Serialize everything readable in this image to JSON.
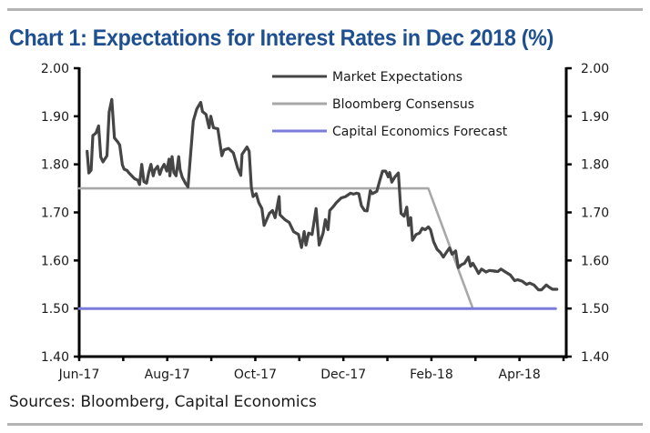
{
  "header": {
    "title": "Chart 1: Expectations for Interest Rates in Dec 2018 (%)"
  },
  "footer": {
    "source": "Sources: Bloomberg, Capital Economics"
  },
  "chart_data": {
    "type": "line",
    "title": "Chart 1: Expectations for Interest Rates in Dec 2018 (%)",
    "xlabel": "",
    "ylabel": "",
    "ylim": [
      1.4,
      2.0
    ],
    "yticks": [
      "2.00",
      "1.90",
      "1.80",
      "1.70",
      "1.60",
      "1.50",
      "1.40"
    ],
    "ytick_values": [
      2.0,
      1.9,
      1.8,
      1.7,
      1.6,
      1.5,
      1.4
    ],
    "secondary_y": true,
    "x_unit": "months since Jun-17",
    "xlim": [
      0,
      11
    ],
    "xticks_minor": [
      0,
      1,
      2,
      3,
      4,
      5,
      6,
      7,
      8,
      9,
      10,
      11
    ],
    "xtick_labels": [
      {
        "at": 0,
        "label": "Jun-17"
      },
      {
        "at": 2,
        "label": "Aug-17"
      },
      {
        "at": 4,
        "label": "Oct-17"
      },
      {
        "at": 6,
        "label": "Dec-17"
      },
      {
        "at": 8,
        "label": "Feb-18"
      },
      {
        "at": 10,
        "label": "Apr-18"
      }
    ],
    "grid": false,
    "legend_position": "top-center",
    "series": [
      {
        "name": "Market Expectations",
        "color": "#454545",
        "points": [
          [
            0.18,
            1.827
          ],
          [
            0.22,
            1.782
          ],
          [
            0.27,
            1.788
          ],
          [
            0.31,
            1.86
          ],
          [
            0.38,
            1.865
          ],
          [
            0.44,
            1.88
          ],
          [
            0.49,
            1.815
          ],
          [
            0.54,
            1.805
          ],
          [
            0.63,
            1.818
          ],
          [
            0.68,
            1.909
          ],
          [
            0.74,
            1.935
          ],
          [
            0.8,
            1.855
          ],
          [
            0.88,
            1.846
          ],
          [
            0.92,
            1.84
          ],
          [
            0.98,
            1.799
          ],
          [
            1.02,
            1.79
          ],
          [
            1.09,
            1.787
          ],
          [
            1.12,
            1.783
          ],
          [
            1.26,
            1.77
          ],
          [
            1.33,
            1.767
          ],
          [
            1.37,
            1.758
          ],
          [
            1.42,
            1.8
          ],
          [
            1.47,
            1.764
          ],
          [
            1.53,
            1.761
          ],
          [
            1.58,
            1.783
          ],
          [
            1.63,
            1.8
          ],
          [
            1.68,
            1.776
          ],
          [
            1.72,
            1.789
          ],
          [
            1.78,
            1.796
          ],
          [
            1.83,
            1.779
          ],
          [
            1.88,
            1.792
          ],
          [
            1.93,
            1.8
          ],
          [
            1.99,
            1.786
          ],
          [
            2.04,
            1.811
          ],
          [
            2.06,
            1.776
          ],
          [
            2.11,
            1.816
          ],
          [
            2.15,
            1.783
          ],
          [
            2.2,
            1.776
          ],
          [
            2.26,
            1.816
          ],
          [
            2.29,
            1.789
          ],
          [
            2.34,
            1.773
          ],
          [
            2.41,
            1.761
          ],
          [
            2.47,
            1.753
          ],
          [
            2.59,
            1.89
          ],
          [
            2.67,
            1.915
          ],
          [
            2.76,
            1.929
          ],
          [
            2.8,
            1.91
          ],
          [
            2.88,
            1.904
          ],
          [
            2.95,
            1.876
          ],
          [
            2.99,
            1.9
          ],
          [
            3.05,
            1.876
          ],
          [
            3.15,
            1.874
          ],
          [
            3.24,
            1.818
          ],
          [
            3.29,
            1.83
          ],
          [
            3.39,
            1.833
          ],
          [
            3.5,
            1.824
          ],
          [
            3.6,
            1.792
          ],
          [
            3.67,
            1.777
          ],
          [
            3.7,
            1.821
          ],
          [
            3.81,
            1.836
          ],
          [
            3.86,
            1.827
          ],
          [
            3.91,
            1.752
          ],
          [
            3.95,
            1.733
          ],
          [
            4.02,
            1.739
          ],
          [
            4.08,
            1.72
          ],
          [
            4.15,
            1.708
          ],
          [
            4.2,
            1.673
          ],
          [
            4.32,
            1.698
          ],
          [
            4.39,
            1.704
          ],
          [
            4.45,
            1.689
          ],
          [
            4.54,
            1.733
          ],
          [
            4.56,
            1.695
          ],
          [
            4.67,
            1.685
          ],
          [
            4.77,
            1.679
          ],
          [
            4.87,
            1.66
          ],
          [
            4.98,
            1.654
          ],
          [
            5.05,
            1.627
          ],
          [
            5.11,
            1.66
          ],
          [
            5.15,
            1.632
          ],
          [
            5.21,
            1.657
          ],
          [
            5.29,
            1.654
          ],
          [
            5.38,
            1.708
          ],
          [
            5.45,
            1.632
          ],
          [
            5.54,
            1.657
          ],
          [
            5.59,
            1.685
          ],
          [
            5.65,
            1.664
          ],
          [
            5.69,
            1.704
          ],
          [
            5.76,
            1.711
          ],
          [
            5.84,
            1.72
          ],
          [
            5.95,
            1.73
          ],
          [
            6.05,
            1.733
          ],
          [
            6.16,
            1.74
          ],
          [
            6.23,
            1.738
          ],
          [
            6.3,
            1.74
          ],
          [
            6.35,
            1.739
          ],
          [
            6.41,
            1.714
          ],
          [
            6.48,
            1.704
          ],
          [
            6.54,
            1.703
          ],
          [
            6.61,
            1.745
          ],
          [
            6.66,
            1.739
          ],
          [
            6.76,
            1.744
          ],
          [
            6.83,
            1.767
          ],
          [
            6.89,
            1.786
          ],
          [
            6.96,
            1.786
          ],
          [
            7.02,
            1.774
          ],
          [
            7.05,
            1.783
          ],
          [
            7.1,
            1.763
          ],
          [
            7.17,
            1.774
          ],
          [
            7.25,
            1.782
          ],
          [
            7.31,
            1.698
          ],
          [
            7.38,
            1.692
          ],
          [
            7.44,
            1.711
          ],
          [
            7.48,
            1.673
          ],
          [
            7.53,
            1.689
          ],
          [
            7.57,
            1.642
          ],
          [
            7.65,
            1.654
          ],
          [
            7.73,
            1.657
          ],
          [
            7.79,
            1.667
          ],
          [
            7.86,
            1.664
          ],
          [
            7.93,
            1.67
          ],
          [
            7.98,
            1.664
          ],
          [
            8.05,
            1.639
          ],
          [
            8.13,
            1.623
          ],
          [
            8.2,
            1.617
          ],
          [
            8.27,
            1.607
          ],
          [
            8.34,
            1.617
          ],
          [
            8.41,
            1.626
          ],
          [
            8.47,
            1.613
          ],
          [
            8.55,
            1.62
          ],
          [
            8.61,
            1.585
          ],
          [
            8.68,
            1.591
          ],
          [
            8.75,
            1.594
          ],
          [
            8.84,
            1.607
          ],
          [
            8.89,
            1.588
          ],
          [
            8.94,
            1.594
          ],
          [
            9.0,
            1.585
          ],
          [
            9.07,
            1.573
          ],
          [
            9.14,
            1.582
          ],
          [
            9.24,
            1.576
          ],
          [
            9.31,
            1.579
          ],
          [
            9.45,
            1.578
          ],
          [
            9.41,
            1.578
          ],
          [
            9.51,
            1.577
          ],
          [
            9.58,
            1.582
          ],
          [
            9.68,
            1.576
          ],
          [
            9.79,
            1.57
          ],
          [
            9.79,
            1.57
          ],
          [
            9.89,
            1.558
          ],
          [
            9.96,
            1.56
          ],
          [
            10.06,
            1.557
          ],
          [
            10.16,
            1.55
          ],
          [
            10.23,
            1.553
          ],
          [
            10.33,
            1.549
          ],
          [
            10.43,
            1.539
          ],
          [
            10.5,
            1.539
          ],
          [
            10.61,
            1.549
          ],
          [
            10.68,
            1.544
          ],
          [
            10.75,
            1.54
          ],
          [
            10.85,
            1.54
          ]
        ]
      },
      {
        "name": "Bloomberg Consensus",
        "color": "#a8a8a8",
        "points": [
          [
            0,
            1.75
          ],
          [
            7.93,
            1.75
          ],
          [
            8.94,
            1.5
          ]
        ]
      },
      {
        "name": "Capital Economics Forecast",
        "color": "#7b7bdc",
        "points": [
          [
            0,
            1.5
          ],
          [
            10.82,
            1.5
          ]
        ]
      }
    ]
  }
}
